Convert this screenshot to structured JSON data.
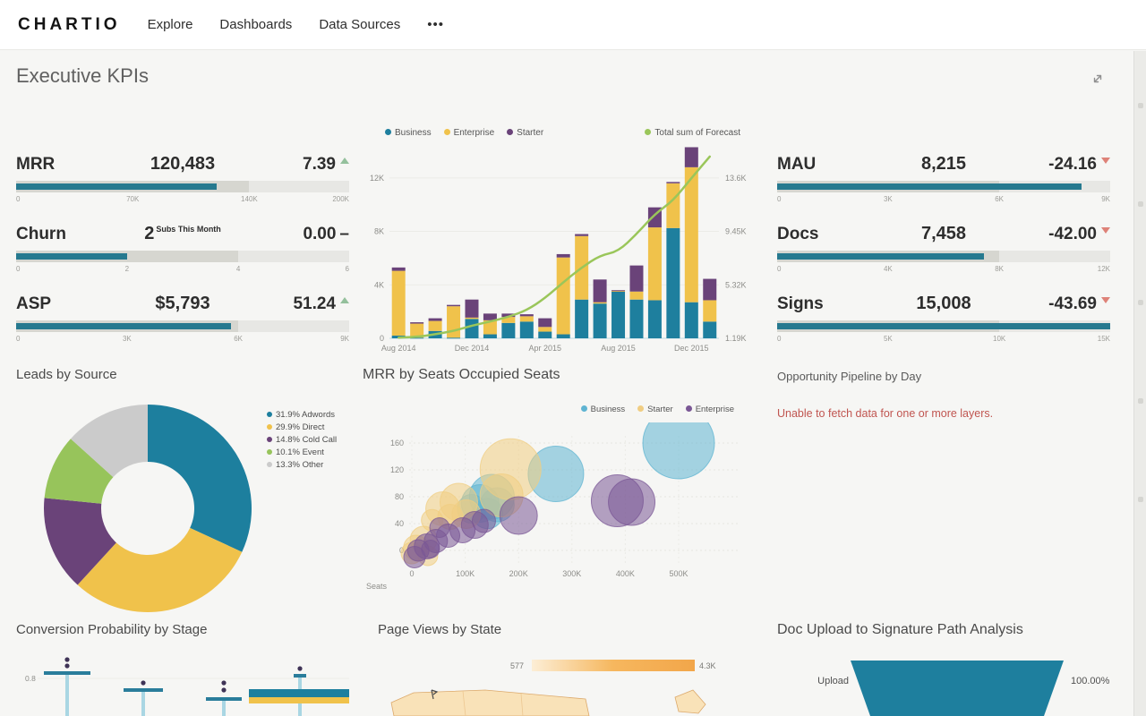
{
  "nav": {
    "brand": "CHARTIO",
    "items": [
      "Explore",
      "Dashboards",
      "Data Sources"
    ],
    "more": "•••"
  },
  "page": {
    "title": "Executive KPIs"
  },
  "colors": {
    "teal": "#1e7f9e",
    "yellow": "#f0c24b",
    "purple": "#6a4379",
    "green_line": "#9ac65a",
    "light_blue": "#5fb4d2",
    "pale_yellow": "#f0cd82",
    "plum": "#7a5795",
    "gray_slice": "#cbcbcb",
    "event_green": "#97c45b",
    "kpi_bar": "#26798f",
    "up_arrow": "#94c09c",
    "down_arrow": "#de8278",
    "error_red": "#c05550",
    "map_fill": "#f9e2b8",
    "map_stroke": "#dca96b",
    "funnel": "#1e7f9e"
  },
  "kpis": [
    {
      "label": "MRR",
      "value": "120,483",
      "value_suffix": "",
      "delta": "7.39",
      "direction": "up",
      "fill_pct": 60.2,
      "band_pct": 70,
      "ticks": [
        {
          "label": "0",
          "pct": 0
        },
        {
          "label": "70K",
          "pct": 35
        },
        {
          "label": "140K",
          "pct": 70
        },
        {
          "label": "200K",
          "pct": 100
        }
      ]
    },
    {
      "label": "Churn",
      "value": "2",
      "value_suffix": "Subs This Month",
      "delta": "0.00",
      "direction": "flat",
      "fill_pct": 33.3,
      "band_pct": 66.7,
      "ticks": [
        {
          "label": "0",
          "pct": 0
        },
        {
          "label": "2",
          "pct": 33.3
        },
        {
          "label": "4",
          "pct": 66.7
        },
        {
          "label": "6",
          "pct": 100
        }
      ]
    },
    {
      "label": "ASP",
      "value": "$5,793",
      "value_suffix": "",
      "delta": "51.24",
      "direction": "up",
      "fill_pct": 64.4,
      "band_pct": 66.7,
      "ticks": [
        {
          "label": "0",
          "pct": 0
        },
        {
          "label": "3K",
          "pct": 33.3
        },
        {
          "label": "6K",
          "pct": 66.7
        },
        {
          "label": "9K",
          "pct": 100
        }
      ]
    },
    {
      "label": "MAU",
      "value": "8,215",
      "value_suffix": "",
      "delta": "-24.16",
      "direction": "down",
      "fill_pct": 91.3,
      "band_pct": 66.7,
      "ticks": [
        {
          "label": "0",
          "pct": 0
        },
        {
          "label": "3K",
          "pct": 33.3
        },
        {
          "label": "6K",
          "pct": 66.7
        },
        {
          "label": "9K",
          "pct": 100
        }
      ]
    },
    {
      "label": "Docs",
      "value": "7,458",
      "value_suffix": "",
      "delta": "-42.00",
      "direction": "down",
      "fill_pct": 62.2,
      "band_pct": 66.7,
      "ticks": [
        {
          "label": "0",
          "pct": 0
        },
        {
          "label": "4K",
          "pct": 33.3
        },
        {
          "label": "8K",
          "pct": 66.7
        },
        {
          "label": "12K",
          "pct": 100
        }
      ]
    },
    {
      "label": "Signs",
      "value": "15,008",
      "value_suffix": "",
      "delta": "-43.69",
      "direction": "down",
      "fill_pct": 100,
      "band_pct": 66.7,
      "ticks": [
        {
          "label": "0",
          "pct": 0
        },
        {
          "label": "5K",
          "pct": 33.3
        },
        {
          "label": "10K",
          "pct": 66.7
        },
        {
          "label": "15K",
          "pct": 100
        }
      ]
    }
  ],
  "chart_data": [
    {
      "id": "mrr_by_month",
      "type": "bar",
      "title": "",
      "categories": [
        "Aug 2014",
        "Sep 2014",
        "Oct 2014",
        "Nov 2014",
        "Dec 2014",
        "Jan 2015",
        "Feb 2015",
        "Mar 2015",
        "Apr 2015",
        "May 2015",
        "Jun 2015",
        "Jul 2015",
        "Aug 2015",
        "Sep 2015",
        "Oct 2015",
        "Nov 2015",
        "Dec 2015",
        "Jan 2016"
      ],
      "series": [
        {
          "name": "Business",
          "color": "#1e7f9e",
          "values": [
            0.2,
            0.05,
            0.55,
            0.05,
            1.45,
            0.3,
            1.15,
            1.25,
            0.5,
            0.3,
            2.9,
            2.6,
            3.5,
            2.9,
            2.85,
            8.25,
            2.7,
            1.25
          ]
        },
        {
          "name": "Enterprise",
          "color": "#f0c24b",
          "values": [
            4.85,
            1.05,
            0.75,
            2.35,
            0.1,
            1.05,
            0.45,
            0.4,
            0.35,
            5.75,
            4.75,
            0.1,
            0.05,
            0.6,
            5.45,
            3.35,
            10.1,
            1.6
          ]
        },
        {
          "name": "Starter",
          "color": "#6a4379",
          "values": [
            0.25,
            0.1,
            0.2,
            0.1,
            1.35,
            0.5,
            0.25,
            0.15,
            0.65,
            0.25,
            0.15,
            1.7,
            0.05,
            1.95,
            1.5,
            0.1,
            1.5,
            1.6
          ]
        }
      ],
      "line_series": {
        "name": "Total sum of Forecast",
        "color": "#9ac65a",
        "values": [
          0.05,
          0.1,
          0.3,
          0.55,
          0.95,
          1.25,
          1.6,
          2.1,
          3.0,
          4.2,
          5.3,
          6.2,
          6.5,
          7.8,
          9.3,
          10.3,
          12.0,
          13.6
        ]
      },
      "y_left_ticks": [
        "12K",
        "8K",
        "4K",
        "0"
      ],
      "y_right_ticks": [
        "13.6K",
        "9.45K",
        "5.32K",
        "1.19K"
      ],
      "x_ticks": [
        {
          "index": 0,
          "label": "Aug 2014"
        },
        {
          "index": 4,
          "label": "Dec 2014"
        },
        {
          "index": 8,
          "label": "Apr 2015"
        },
        {
          "index": 12,
          "label": "Aug 2015"
        },
        {
          "index": 16,
          "label": "Dec 2015"
        }
      ],
      "ylim": [
        0,
        14.6
      ],
      "unit": "K",
      "legend_position": "top"
    },
    {
      "id": "leads_by_source",
      "type": "pie",
      "title": "Leads by Source",
      "slices": [
        {
          "pct": "31.9%",
          "name": "Adwords",
          "value": 31.9,
          "color": "#1d7f9e"
        },
        {
          "pct": "29.9%",
          "name": "Direct",
          "value": 29.9,
          "color": "#f0c24b"
        },
        {
          "pct": "14.8%",
          "name": "Cold Call",
          "value": 14.8,
          "color": "#6a4379"
        },
        {
          "pct": "10.1%",
          "name": "Event",
          "value": 10.1,
          "color": "#97c45b"
        },
        {
          "pct": "13.3%",
          "name": "Other",
          "value": 13.3,
          "color": "#cbcbcb"
        }
      ],
      "donut": true,
      "legend_position": "right"
    },
    {
      "id": "mrr_by_seats",
      "type": "scatter",
      "title": "MRR by Seats Occupied Seats",
      "xlabel": "Seats",
      "y_ticks": [
        160,
        120,
        80,
        40,
        0
      ],
      "x_ticks": [
        "0",
        "100K",
        "200K",
        "300K",
        "400K",
        "500K"
      ],
      "xlim": [
        0,
        560000
      ],
      "ylim": [
        -30,
        180
      ],
      "series": [
        {
          "name": "Business",
          "color": "#5fb4d2",
          "points": [
            [
              500,
              160,
              40
            ],
            [
              270,
              114,
              31
            ],
            [
              150,
              80,
              25
            ],
            [
              128,
              70,
              21
            ],
            [
              160,
              68,
              19
            ],
            [
              112,
              62,
              16
            ],
            [
              142,
              55,
              17
            ]
          ]
        },
        {
          "name": "Starter",
          "color": "#f0cd82",
          "points": [
            [
              185,
              121,
              34
            ],
            [
              168,
              82,
              24
            ],
            [
              88,
              72,
              21
            ],
            [
              58,
              62,
              19
            ],
            [
              102,
              54,
              16
            ],
            [
              72,
              50,
              14
            ],
            [
              38,
              45,
              12
            ],
            [
              22,
              16,
              15
            ],
            [
              8,
              4,
              14
            ],
            [
              0,
              -4,
              12
            ],
            [
              30,
              -8,
              11
            ]
          ]
        },
        {
          "name": "Enterprise",
          "color": "#7a5795",
          "points": [
            [
              385,
              74,
              29
            ],
            [
              412,
              72,
              26
            ],
            [
              200,
              52,
              21
            ],
            [
              118,
              38,
              15
            ],
            [
              95,
              30,
              14
            ],
            [
              68,
              22,
              13
            ],
            [
              45,
              14,
              13
            ],
            [
              28,
              6,
              14
            ],
            [
              12,
              0,
              12
            ],
            [
              52,
              34,
              11
            ],
            [
              135,
              44,
              13
            ],
            [
              5,
              -10,
              12
            ],
            [
              35,
              2,
              10
            ]
          ]
        }
      ],
      "legend_position": "top-right",
      "x_unit": "K"
    },
    {
      "id": "opportunity_pipeline",
      "type": "line",
      "title": "Opportunity Pipeline by Day",
      "error": "Unable to fetch data for one or more layers."
    },
    {
      "id": "conversion_probability",
      "type": "boxplot",
      "title": "Conversion Probability by Stage",
      "ytick_label": "0.8",
      "groups": [
        {
          "x": 57,
          "cap_y": 27,
          "cap_w": 52,
          "dots": [
            12,
            19
          ],
          "box": null
        },
        {
          "x": 142,
          "cap_y": 46,
          "cap_w": 44,
          "dots": [
            38
          ],
          "box": null
        },
        {
          "x": 232,
          "cap_y": 56,
          "cap_w": 40,
          "dots": [
            38,
            46
          ],
          "box": null
        },
        {
          "x": 317,
          "cap_y": 30,
          "cap_w": 14,
          "dots": [
            22
          ],
          "box": {
            "w": 114,
            "teal_top": 45,
            "teal_h": 9,
            "yellow_h": 7
          }
        }
      ]
    },
    {
      "id": "page_views_by_state",
      "type": "heatmap",
      "title": "Page Views by State",
      "legend_min": "577",
      "legend_max": "4.3K"
    },
    {
      "id": "doc_upload_funnel",
      "type": "area",
      "title": "Doc Upload to Signature Path Analysis",
      "stages": [
        {
          "label": "Upload",
          "pct": "100.00%"
        }
      ]
    }
  ]
}
